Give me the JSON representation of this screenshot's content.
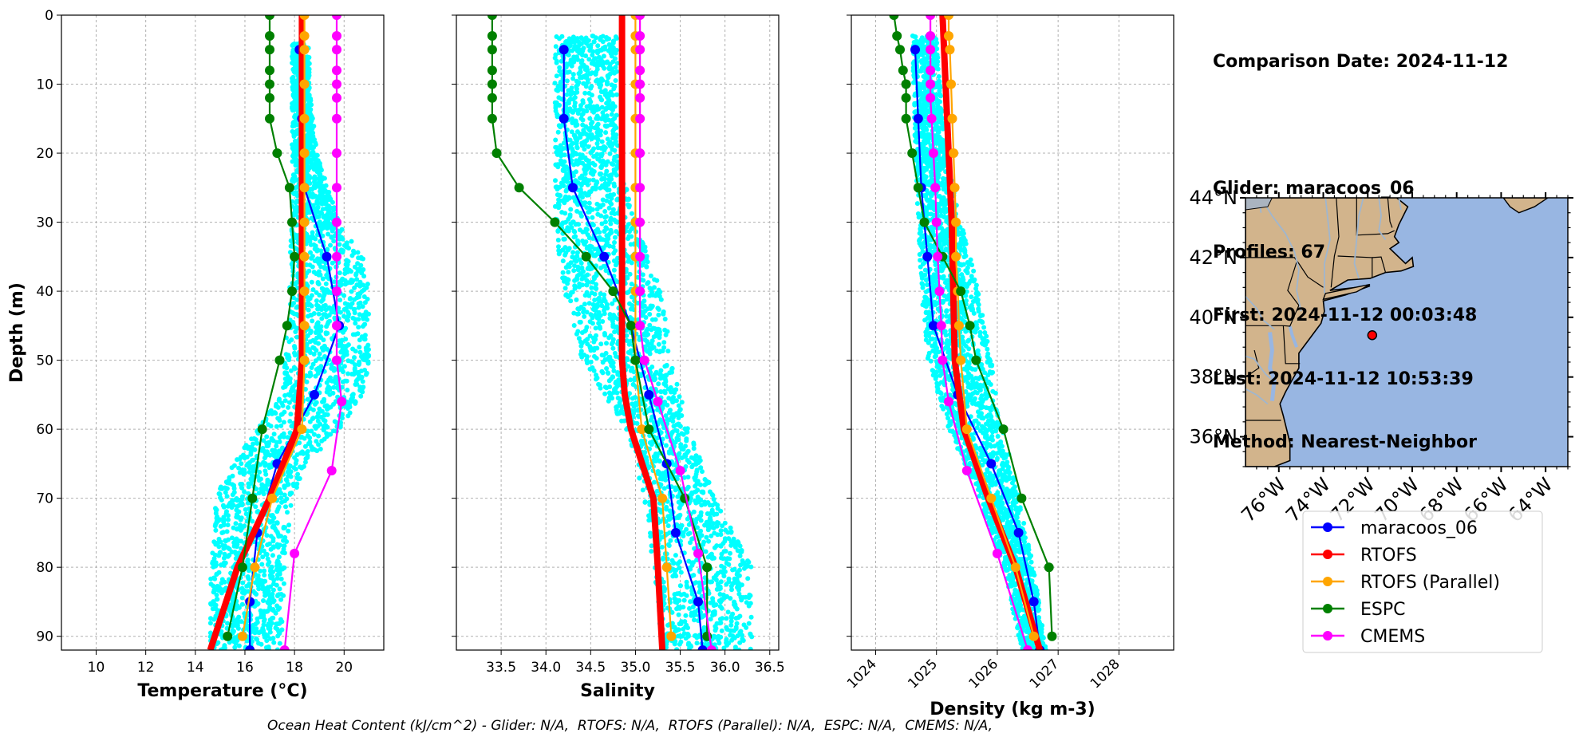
{
  "info": {
    "comparison_date": "Comparison Date: 2024-11-12",
    "glider": "Glider: maracoos_06",
    "profiles": "Profiles: 67",
    "first": "First: 2024-11-12 00:03:48",
    "last": "Last: 2024-11-12 10:53:39",
    "method": "Method: Nearest-Neighbor"
  },
  "footer": "Ocean Heat Content (kJ/cm^2) - Glider: N/A,  RTOFS: N/A,  RTOFS (Parallel): N/A,  ESPC: N/A,  CMEMS: N/A,",
  "colors": {
    "glider_scatter": "#00ffff",
    "maracoos_06": "#0000ff",
    "RTOFS": "#ff0000",
    "RTOFS (Parallel)": "#ffa500",
    "ESPC": "#008000",
    "CMEMS": "#ff00ff",
    "land": "#d2b48c",
    "ocean": "#98b6e2",
    "rivers": "#9fb6cf"
  },
  "chart_data": [
    {
      "type": "line",
      "xlabel": "Temperature (°C)",
      "ylabel": "Depth (m)",
      "xlim": [
        8.6,
        21.6
      ],
      "ylim": [
        92,
        0
      ],
      "xticks": [
        "10",
        "12",
        "14",
        "16",
        "18",
        "20"
      ],
      "yticks": [
        "0",
        "10",
        "20",
        "30",
        "40",
        "50",
        "60",
        "70",
        "80",
        "90"
      ],
      "grid": true,
      "scatter_band": [
        [
          4,
          17.9,
          18.6
        ],
        [
          10,
          17.9,
          18.6
        ],
        [
          20,
          17.9,
          18.9
        ],
        [
          30,
          17.9,
          19.8
        ],
        [
          35,
          17.8,
          20.8
        ],
        [
          40,
          17.8,
          21
        ],
        [
          50,
          17.6,
          21
        ],
        [
          55,
          17.5,
          20.8
        ],
        [
          60,
          16.5,
          19.8
        ],
        [
          65,
          15.5,
          18.5
        ],
        [
          70,
          14.8,
          17.9
        ],
        [
          80,
          14.6,
          17.6
        ],
        [
          92,
          14.6,
          17.5
        ]
      ],
      "series": [
        {
          "name": "maracoos_06",
          "depth": [
            5,
            15,
            25,
            35,
            45,
            55,
            65,
            75,
            85,
            92
          ],
          "values": [
            18.2,
            18.3,
            18.4,
            19.3,
            19.8,
            18.8,
            17.3,
            16.5,
            16.2,
            16.2
          ]
        },
        {
          "name": "RTOFS",
          "depth": [
            0,
            30,
            50,
            60,
            70,
            80,
            92
          ],
          "values": [
            18.3,
            18.3,
            18.3,
            18.1,
            17.0,
            15.7,
            14.6
          ]
        },
        {
          "name": "RTOFS (Parallel)",
          "depth": [
            0,
            3,
            5,
            10,
            15,
            20,
            25,
            30,
            35,
            40,
            45,
            50,
            60,
            70,
            80,
            90
          ],
          "values": [
            18.4,
            18.4,
            18.4,
            18.4,
            18.4,
            18.4,
            18.4,
            18.4,
            18.4,
            18.4,
            18.4,
            18.4,
            18.3,
            17.1,
            16.4,
            15.9
          ]
        },
        {
          "name": "ESPC",
          "depth": [
            0,
            3,
            5,
            8,
            10,
            12,
            15,
            20,
            25,
            30,
            35,
            40,
            45,
            50,
            60,
            70,
            80,
            90
          ],
          "values": [
            17.0,
            17.0,
            17.0,
            17.0,
            17.0,
            17.0,
            17.0,
            17.3,
            17.8,
            17.9,
            18.0,
            17.9,
            17.7,
            17.4,
            16.7,
            16.3,
            15.9,
            15.3
          ]
        },
        {
          "name": "CMEMS",
          "depth": [
            0,
            3,
            5,
            8,
            10,
            12,
            15,
            20,
            25,
            30,
            35,
            40,
            45,
            50,
            56,
            66,
            78,
            92
          ],
          "values": [
            19.7,
            19.7,
            19.7,
            19.7,
            19.7,
            19.7,
            19.7,
            19.7,
            19.7,
            19.7,
            19.7,
            19.7,
            19.7,
            19.7,
            19.9,
            19.5,
            18.0,
            17.6
          ]
        }
      ]
    },
    {
      "type": "line",
      "xlabel": "Salinity",
      "ylabel": "",
      "xlim": [
        33.0,
        36.6
      ],
      "ylim": [
        92,
        0
      ],
      "xticks": [
        "33.5",
        "34.0",
        "34.5",
        "35.0",
        "35.5",
        "36.0",
        "36.5"
      ],
      "grid": true,
      "scatter_band": [
        [
          3,
          34.1,
          34.8
        ],
        [
          20,
          34.1,
          34.8
        ],
        [
          30,
          34.1,
          35.0
        ],
        [
          40,
          34.2,
          35.3
        ],
        [
          50,
          34.4,
          35.4
        ],
        [
          60,
          34.9,
          35.6
        ],
        [
          70,
          35.1,
          35.9
        ],
        [
          80,
          35.2,
          36.3
        ],
        [
          92,
          35.3,
          36.3
        ]
      ],
      "series": [
        {
          "name": "maracoos_06",
          "depth": [
            5,
            15,
            25,
            35,
            45,
            55,
            65,
            75,
            85,
            92
          ],
          "values": [
            34.2,
            34.2,
            34.3,
            34.65,
            34.95,
            35.15,
            35.35,
            35.45,
            35.7,
            35.75
          ]
        },
        {
          "name": "RTOFS",
          "depth": [
            0,
            50,
            55,
            60,
            70,
            80,
            92
          ],
          "values": [
            34.85,
            34.85,
            34.88,
            34.95,
            35.2,
            35.25,
            35.3
          ]
        },
        {
          "name": "RTOFS (Parallel)",
          "depth": [
            0,
            3,
            5,
            10,
            15,
            20,
            25,
            30,
            35,
            40,
            45,
            50,
            60,
            70,
            80,
            90
          ],
          "values": [
            35.0,
            35.0,
            35.0,
            35.0,
            35.0,
            35.0,
            35.0,
            35.0,
            35.0,
            35.0,
            35.0,
            35.0,
            35.07,
            35.3,
            35.35,
            35.4
          ]
        },
        {
          "name": "ESPC",
          "depth": [
            0,
            3,
            5,
            8,
            10,
            12,
            15,
            20,
            25,
            30,
            35,
            40,
            45,
            50,
            60,
            70,
            80,
            90
          ],
          "values": [
            33.4,
            33.4,
            33.4,
            33.4,
            33.4,
            33.4,
            33.4,
            33.45,
            33.7,
            34.1,
            34.45,
            34.75,
            34.95,
            35.0,
            35.15,
            35.55,
            35.8,
            35.8
          ]
        },
        {
          "name": "CMEMS",
          "depth": [
            0,
            3,
            5,
            8,
            10,
            12,
            15,
            20,
            25,
            30,
            35,
            40,
            45,
            50,
            56,
            66,
            78,
            92
          ],
          "values": [
            35.05,
            35.05,
            35.05,
            35.05,
            35.05,
            35.05,
            35.05,
            35.05,
            35.05,
            35.05,
            35.05,
            35.05,
            35.05,
            35.1,
            35.25,
            35.5,
            35.7,
            35.85
          ]
        }
      ]
    },
    {
      "type": "line",
      "xlabel": "Density (kg m-3)",
      "ylabel": "",
      "xlim": [
        1023.6,
        1028.9
      ],
      "ylim": [
        92,
        0
      ],
      "xticks": [
        "1024",
        "1025",
        "1026",
        "1027",
        "1028"
      ],
      "grid": true,
      "scatter_band": [
        [
          3,
          1024.6,
          1025.0
        ],
        [
          20,
          1024.65,
          1025.15
        ],
        [
          30,
          1024.7,
          1025.4
        ],
        [
          40,
          1024.75,
          1025.7
        ],
        [
          50,
          1024.85,
          1025.9
        ],
        [
          60,
          1025.2,
          1026.1
        ],
        [
          70,
          1025.7,
          1026.35
        ],
        [
          80,
          1026.1,
          1026.6
        ],
        [
          92,
          1026.4,
          1026.8
        ]
      ],
      "series": [
        {
          "name": "maracoos_06",
          "depth": [
            5,
            15,
            25,
            35,
            45,
            55,
            65,
            75,
            85,
            92
          ],
          "values": [
            1024.65,
            1024.7,
            1024.75,
            1024.85,
            1024.95,
            1025.35,
            1025.9,
            1026.35,
            1026.6,
            1026.7
          ]
        },
        {
          "name": "RTOFS",
          "depth": [
            0,
            30,
            50,
            60,
            70,
            80,
            92
          ],
          "values": [
            1025.1,
            1025.25,
            1025.3,
            1025.45,
            1025.85,
            1026.3,
            1026.7
          ]
        },
        {
          "name": "RTOFS (Parallel)",
          "depth": [
            0,
            3,
            5,
            10,
            15,
            20,
            25,
            30,
            35,
            40,
            45,
            50,
            60,
            70,
            80,
            90
          ],
          "values": [
            1025.2,
            1025.2,
            1025.22,
            1025.24,
            1025.26,
            1025.28,
            1025.3,
            1025.32,
            1025.32,
            1025.35,
            1025.37,
            1025.4,
            1025.5,
            1025.9,
            1026.3,
            1026.6
          ]
        },
        {
          "name": "ESPC",
          "depth": [
            0,
            3,
            5,
            8,
            10,
            12,
            15,
            20,
            25,
            30,
            35,
            40,
            45,
            50,
            60,
            70,
            80,
            90
          ],
          "values": [
            1024.3,
            1024.35,
            1024.4,
            1024.45,
            1024.5,
            1024.5,
            1024.5,
            1024.6,
            1024.7,
            1024.8,
            1025.1,
            1025.4,
            1025.55,
            1025.65,
            1026.1,
            1026.4,
            1026.85,
            1026.9
          ]
        },
        {
          "name": "CMEMS",
          "depth": [
            0,
            3,
            5,
            8,
            10,
            12,
            15,
            20,
            25,
            30,
            35,
            40,
            45,
            50,
            56,
            66,
            78,
            92
          ],
          "values": [
            1024.9,
            1024.9,
            1024.9,
            1024.9,
            1024.9,
            1024.9,
            1024.92,
            1024.95,
            1024.98,
            1025.0,
            1025.02,
            1025.05,
            1025.08,
            1025.1,
            1025.2,
            1025.5,
            1026.0,
            1026.5
          ]
        }
      ]
    },
    {
      "type": "map",
      "lon_range": [
        -77.5,
        -63
      ],
      "lat_range": [
        35,
        44
      ],
      "xticks": [
        "76°W",
        "74°W",
        "72°W",
        "70°W",
        "68°W",
        "66°W",
        "64°W"
      ],
      "yticks": [
        "44°N",
        "42°N",
        "40°N",
        "38°N",
        "36°N"
      ],
      "glider_position": {
        "lon": -71.8,
        "lat": 39.4
      },
      "legend": [
        "maracoos_06",
        "RTOFS",
        "RTOFS (Parallel)",
        "ESPC",
        "CMEMS"
      ]
    }
  ]
}
